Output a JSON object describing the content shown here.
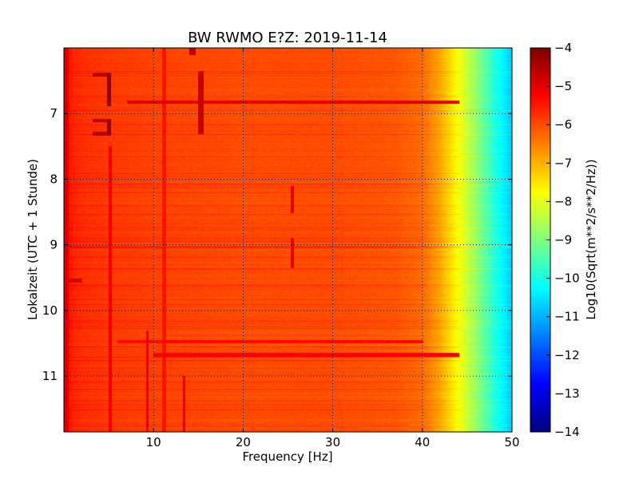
{
  "chart_data": {
    "type": "heatmap",
    "title": "BW RWMO E?Z: 2019-11-14",
    "xlabel": "Frequency [Hz]",
    "ylabel": "Lokalzeit (UTC + 1 Stunde)",
    "xlim": [
      0,
      50
    ],
    "ylim": [
      6.0,
      11.85
    ],
    "y_inverted": true,
    "x_ticks": [
      10,
      20,
      30,
      40,
      50
    ],
    "y_ticks": [
      7,
      8,
      9,
      10,
      11
    ],
    "grid": true,
    "colorbar": {
      "label": "Log10(Sqrt(m**2/s**2/Hz))",
      "range": [
        -14,
        -4
      ],
      "ticks": [
        -4,
        -5,
        -6,
        -7,
        -8,
        -9,
        -10,
        -11,
        -12,
        -13,
        -14
      ],
      "colormap": "jet"
    },
    "frequency_profile": {
      "x": [
        0,
        0.5,
        1,
        2,
        5,
        10,
        20,
        30,
        37,
        40,
        42,
        44,
        46,
        48,
        50
      ],
      "values": [
        -5.1,
        -5.4,
        -5.6,
        -5.7,
        -5.8,
        -5.9,
        -6.0,
        -6.0,
        -6.1,
        -6.3,
        -6.9,
        -7.8,
        -8.8,
        -9.9,
        -10.8
      ]
    },
    "features": [
      {
        "x_range": [
          4.8,
          5.2
        ],
        "y_range": [
          6.38,
          6.88
        ],
        "value": -4.2
      },
      {
        "x_range": [
          4.8,
          5.2
        ],
        "y_range": [
          7.08,
          7.33
        ],
        "value": -4.2
      },
      {
        "x_range": [
          3.2,
          4.8
        ],
        "y_range": [
          6.38,
          6.42
        ],
        "value": -4.6
      },
      {
        "x_range": [
          3.2,
          4.8
        ],
        "y_range": [
          7.28,
          7.32
        ],
        "value": -4.6
      },
      {
        "x_range": [
          3.2,
          4.8
        ],
        "y_range": [
          7.08,
          7.12
        ],
        "value": -4.6
      },
      {
        "x_range": [
          7,
          44
        ],
        "y_range": [
          6.8,
          6.84
        ],
        "value": -5.0
      },
      {
        "x_range": [
          0.5,
          2
        ],
        "y_range": [
          9.52,
          9.56
        ],
        "value": -4.8
      },
      {
        "x_range": [
          15,
          15.5
        ],
        "y_range": [
          6.35,
          7.3
        ],
        "value": -4.7
      },
      {
        "x_range": [
          25.3,
          25.6
        ],
        "y_range": [
          8.1,
          8.5
        ],
        "value": -5.0
      },
      {
        "x_range": [
          25.3,
          25.6
        ],
        "y_range": [
          8.9,
          9.35
        ],
        "value": -5.0
      },
      {
        "x_range": [
          9.2,
          9.4
        ],
        "y_range": [
          10.3,
          11.85
        ],
        "value": -5.0
      },
      {
        "x_range": [
          13.3,
          13.5
        ],
        "y_range": [
          11.0,
          11.85
        ],
        "value": -5.0
      },
      {
        "x_range": [
          14,
          14.6
        ],
        "y_range": [
          6.0,
          6.1
        ],
        "value": -4.6
      },
      {
        "x_range": [
          5,
          5.3
        ],
        "y_range": [
          7.5,
          11.85
        ],
        "value": -5.1
      },
      {
        "x_range": [
          11,
          11.3
        ],
        "y_range": [
          6.0,
          11.85
        ],
        "value": -5.4
      },
      {
        "x_range": [
          0,
          0.45
        ],
        "y_range": [
          6.0,
          11.85
        ],
        "value": -4.9
      },
      {
        "x_range": [
          10,
          44
        ],
        "y_range": [
          10.65,
          10.7
        ],
        "value": -5.2
      },
      {
        "x_range": [
          6,
          40
        ],
        "y_range": [
          10.45,
          10.49
        ],
        "value": -5.3
      }
    ]
  }
}
